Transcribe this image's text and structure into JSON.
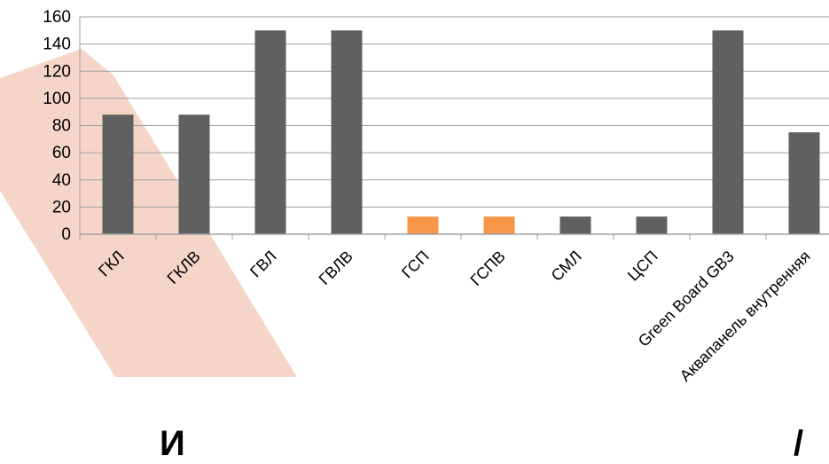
{
  "chart_data": {
    "type": "bar",
    "categories": [
      "ГКЛ",
      "ГКЛВ",
      "ГВЛ",
      "ГВЛВ",
      "ГСП",
      "ГСПВ",
      "СМЛ",
      "ЦСП",
      "Green Board GB3",
      "Аквапанель внутренняя"
    ],
    "values": [
      88,
      88,
      150,
      150,
      13,
      13,
      13,
      13,
      150,
      75
    ],
    "highlight": [
      false,
      false,
      false,
      false,
      true,
      true,
      false,
      false,
      false,
      false
    ],
    "ylim": [
      0,
      160
    ],
    "yticks": [
      0,
      20,
      40,
      60,
      80,
      100,
      120,
      140,
      160
    ],
    "grid": true,
    "legend": "none",
    "title": "",
    "xlabel": "",
    "ylabel": ""
  },
  "colors": {
    "bar": "#606060",
    "highlight": "#f79646",
    "grid": "#a0a0a0",
    "decor": "#f5d5c8"
  },
  "partial_text": {
    "left": "И",
    "right": "/"
  }
}
